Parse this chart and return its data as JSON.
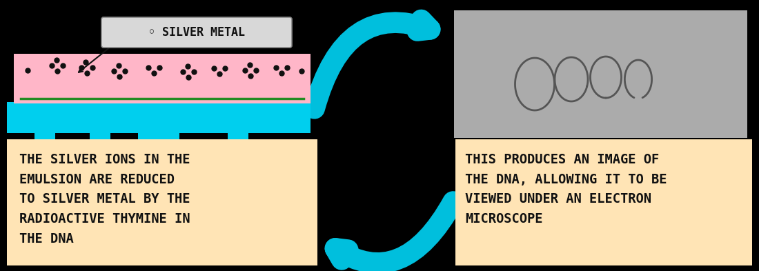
{
  "bg_color": "#000000",
  "cyan_color": "#00BFDD",
  "pink_color": "#FFB6C8",
  "cyan_base_color": "#00CFEE",
  "green_color": "#228B22",
  "gray_color": "#ABABAB",
  "peach_color": "#FFE4B5",
  "silver_label_bg": "#D8D8D8",
  "text_color": "#111111",
  "dna_line_color": "#555555",
  "dot_color": "#111111",
  "left_box_text": "THE SILVER IONS IN THE\nEMULSION ARE REDUCED\nTO SILVER METAL BY THE\nRADIOACTIVE THYMINE IN\nTHE DNA",
  "right_box_text": "THIS PRODUCES AN IMAGE OF\nTHE DNA, ALLOWING IT TO BE\nVIEWED UNDER AN ELECTRON\nMICROSCOPE",
  "silver_label": "SILVER METAL",
  "fig_width": 11.0,
  "fig_height": 3.93
}
